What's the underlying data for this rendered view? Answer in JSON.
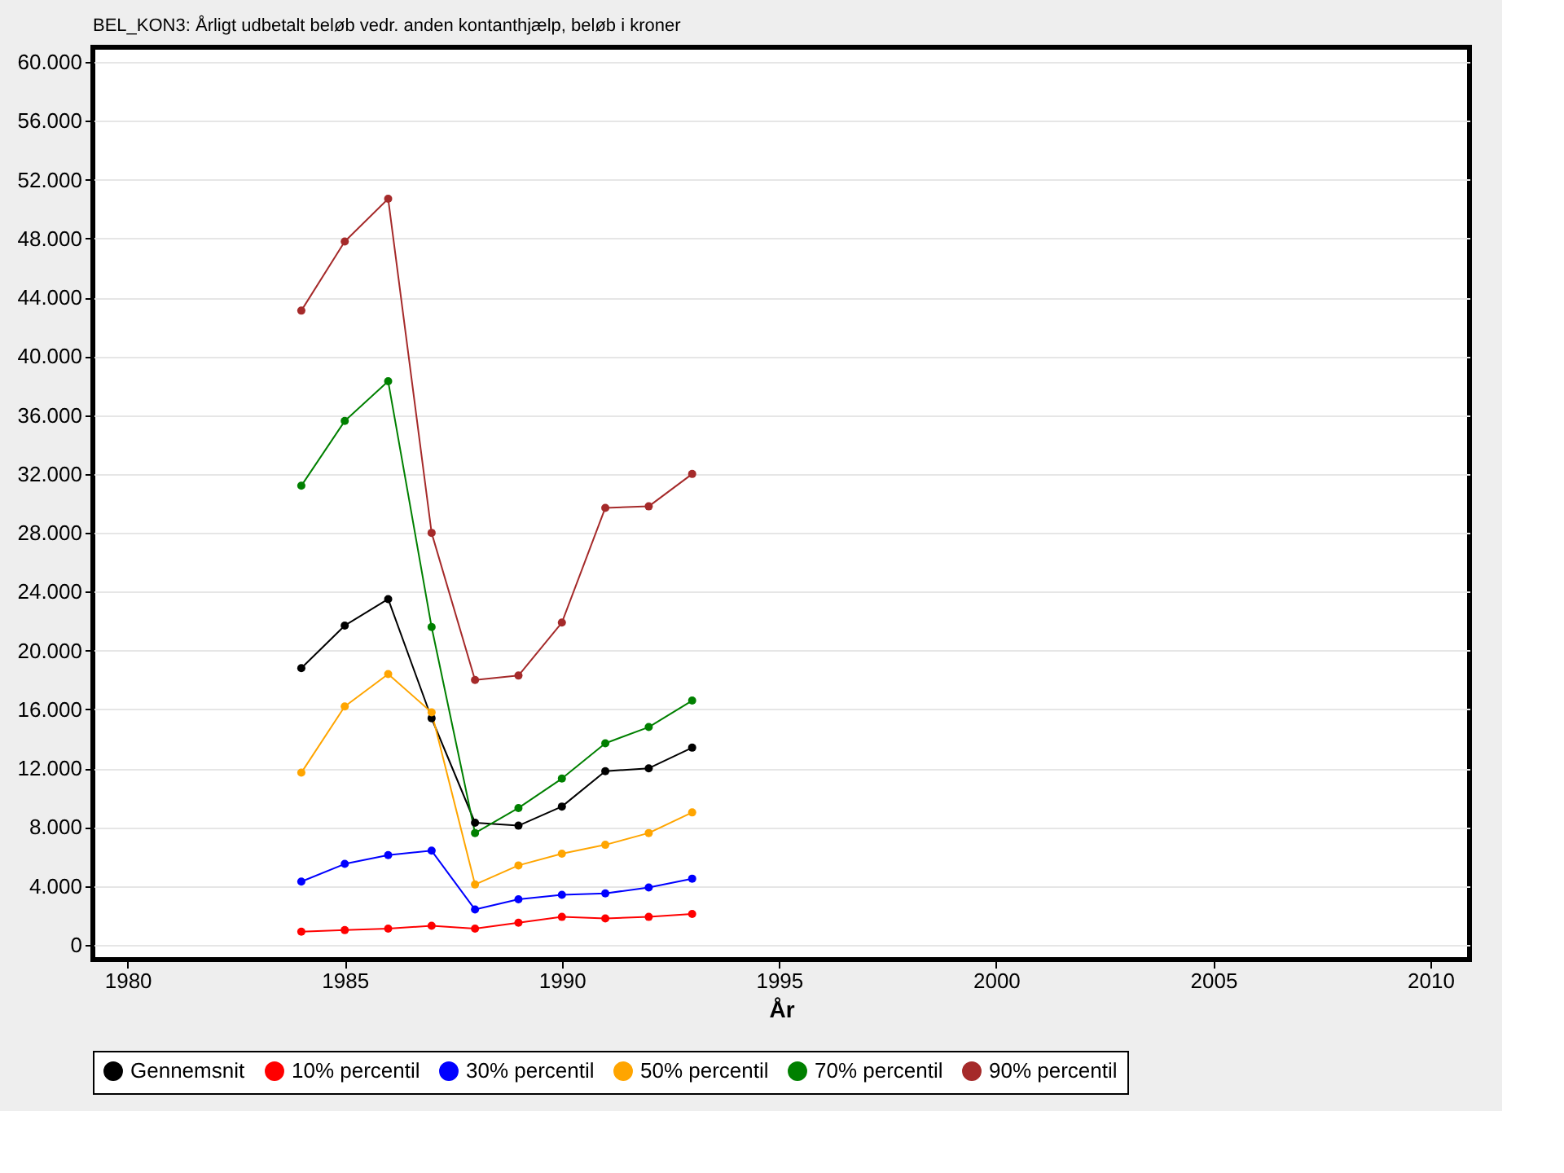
{
  "chart_data": {
    "type": "line",
    "title": "BEL_KON3: Årligt udbetalt beløb vedr. anden kontanthjælp, beløb i kroner",
    "xlabel": "År",
    "x": [
      1984,
      1985,
      1986,
      1987,
      1988,
      1989,
      1990,
      1991,
      1992,
      1993
    ],
    "series": [
      {
        "name": "Gennemsnit",
        "color": "#000000",
        "values": [
          18800,
          21700,
          23500,
          15400,
          8300,
          8100,
          9400,
          11800,
          12000,
          13400
        ]
      },
      {
        "name": "10% percentil",
        "color": "#ff0000",
        "values": [
          900,
          1000,
          1100,
          1300,
          1100,
          1500,
          1900,
          1800,
          1900,
          2100
        ]
      },
      {
        "name": "30% percentil",
        "color": "#0000ff",
        "values": [
          4300,
          5500,
          6100,
          6400,
          2400,
          3100,
          3400,
          3500,
          3900,
          4500
        ]
      },
      {
        "name": "50% percentil",
        "color": "#ffa500",
        "values": [
          11700,
          16200,
          18400,
          15800,
          4100,
          5400,
          6200,
          6800,
          7600,
          9000
        ]
      },
      {
        "name": "70% percentil",
        "color": "#008000",
        "values": [
          31200,
          35600,
          38300,
          21600,
          7600,
          9300,
          11300,
          13700,
          14800,
          16600
        ]
      },
      {
        "name": "90% percentil",
        "color": "#a52a2a",
        "values": [
          43100,
          47800,
          50700,
          28000,
          18000,
          18300,
          21900,
          29700,
          29800,
          32000
        ]
      }
    ],
    "xlim": [
      1979.2,
      2010.9
    ],
    "xticks": [
      1980,
      1985,
      1990,
      1995,
      2000,
      2005,
      2010
    ],
    "ylim": [
      -1000,
      61000
    ],
    "yticks": [
      {
        "value": 0,
        "label": "0"
      },
      {
        "value": 4000,
        "label": "4.000"
      },
      {
        "value": 8000,
        "label": "8.000"
      },
      {
        "value": 12000,
        "label": "12.000"
      },
      {
        "value": 16000,
        "label": "16.000"
      },
      {
        "value": 20000,
        "label": "20.000"
      },
      {
        "value": 24000,
        "label": "24.000"
      },
      {
        "value": 28000,
        "label": "28.000"
      },
      {
        "value": 32000,
        "label": "32.000"
      },
      {
        "value": 36000,
        "label": "36.000"
      },
      {
        "value": 40000,
        "label": "40.000"
      },
      {
        "value": 44000,
        "label": "44.000"
      },
      {
        "value": 48000,
        "label": "48.000"
      },
      {
        "value": 52000,
        "label": "52.000"
      },
      {
        "value": 56000,
        "label": "56.000"
      },
      {
        "value": 60000,
        "label": "60.000"
      }
    ],
    "grid": "y",
    "legend": "bottom",
    "marker": "circle",
    "line_style": "solid"
  }
}
